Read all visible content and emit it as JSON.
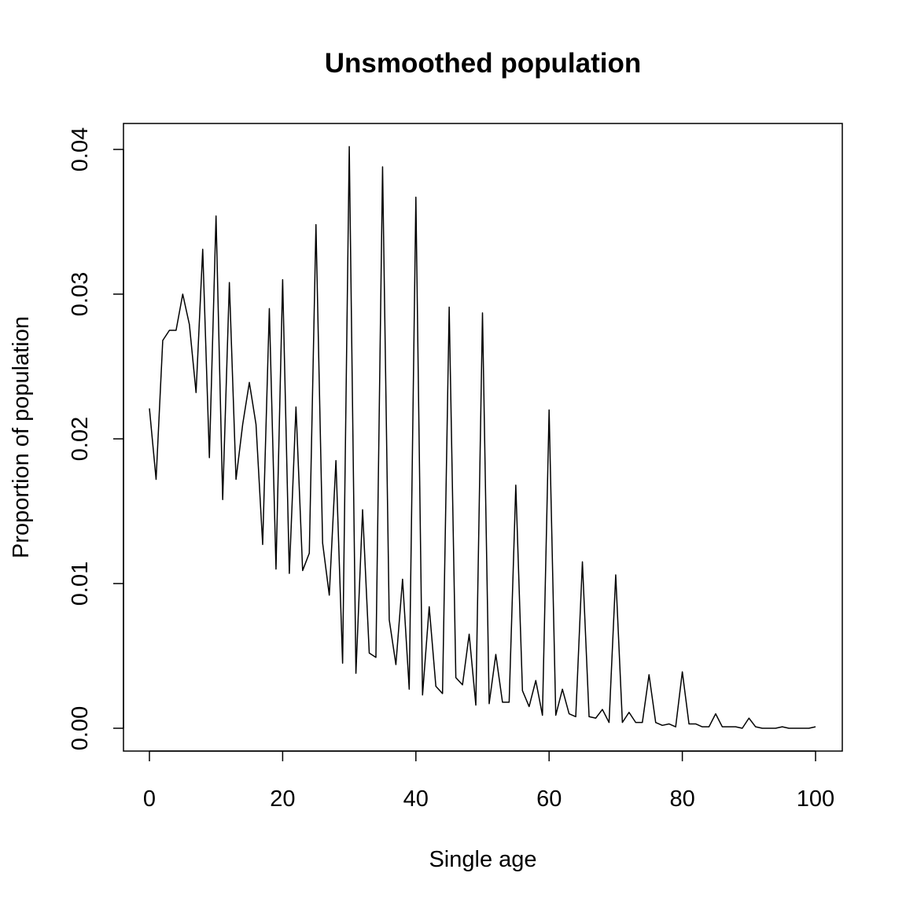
{
  "chart_data": {
    "type": "line",
    "title": "Unsmoothed population",
    "xlabel": "Single age",
    "ylabel": "Proportion of population",
    "xlim": [
      0,
      100
    ],
    "ylim": [
      0,
      0.04
    ],
    "x_ticks": [
      0,
      20,
      40,
      60,
      80,
      100
    ],
    "y_ticks": [
      0.0,
      0.01,
      0.02,
      0.03,
      0.04
    ],
    "x_tick_labels": [
      "0",
      "20",
      "40",
      "60",
      "80",
      "100"
    ],
    "y_tick_labels": [
      "0.00",
      "0.01",
      "0.02",
      "0.03",
      "0.04"
    ],
    "grid": false,
    "line_color": "#000000",
    "series": [
      {
        "x": [
          0,
          1,
          2,
          3,
          4,
          5,
          6,
          7,
          8,
          9,
          10,
          11,
          12,
          13,
          14,
          15,
          16,
          17,
          18,
          19,
          20,
          21,
          22,
          23,
          24,
          25,
          26,
          27,
          28,
          29,
          30,
          31,
          32,
          33,
          34,
          35,
          36,
          37,
          38,
          39,
          40,
          41,
          42,
          43,
          44,
          45,
          46,
          47,
          48,
          49,
          50,
          51,
          52,
          53,
          54,
          55,
          56,
          57,
          58,
          59,
          60,
          61,
          62,
          63,
          64,
          65,
          66,
          67,
          68,
          69,
          70,
          71,
          72,
          73,
          74,
          75,
          76,
          77,
          78,
          79,
          80,
          81,
          82,
          83,
          84,
          85,
          86,
          87,
          88,
          89,
          90,
          91,
          92,
          93,
          94,
          95,
          96,
          97,
          98,
          99,
          100
        ],
        "values": [
          0.0221,
          0.0172,
          0.0268,
          0.0275,
          0.0275,
          0.03,
          0.0279,
          0.0232,
          0.0331,
          0.0187,
          0.0354,
          0.0158,
          0.0308,
          0.0172,
          0.021,
          0.0239,
          0.021,
          0.0127,
          0.029,
          0.011,
          0.031,
          0.0107,
          0.0222,
          0.0109,
          0.0121,
          0.0348,
          0.0128,
          0.0092,
          0.0185,
          0.0045,
          0.0402,
          0.0038,
          0.0151,
          0.0052,
          0.0049,
          0.0388,
          0.0075,
          0.0044,
          0.0103,
          0.0027,
          0.0367,
          0.0023,
          0.0084,
          0.0029,
          0.0024,
          0.0291,
          0.0035,
          0.003,
          0.0065,
          0.0016,
          0.0287,
          0.0017,
          0.0051,
          0.0018,
          0.0018,
          0.0168,
          0.0026,
          0.0015,
          0.0033,
          0.0009,
          0.022,
          0.0009,
          0.0027,
          0.001,
          0.0008,
          0.0115,
          0.0008,
          0.0007,
          0.0013,
          0.0004,
          0.0106,
          0.0004,
          0.0011,
          0.0004,
          0.0004,
          0.0037,
          0.0004,
          0.0002,
          0.0003,
          0.0001,
          0.0039,
          0.0003,
          0.0003,
          0.0001,
          0.0001,
          0.001,
          0.0001,
          0.0001,
          0.0001,
          0.0,
          0.0007,
          0.0001,
          0.0,
          0.0,
          0.0,
          0.0001,
          0.0,
          0.0,
          0.0,
          0.0,
          0.0001
        ]
      }
    ]
  }
}
